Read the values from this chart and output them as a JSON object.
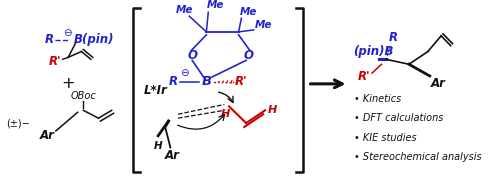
{
  "blue": "#2222CC",
  "red": "#CC0000",
  "black": "#111111",
  "bg": "#ffffff",
  "bullet_items": [
    "Kinetics",
    "DFT calculations",
    "KIE studies",
    "Stereochemical analysis"
  ]
}
